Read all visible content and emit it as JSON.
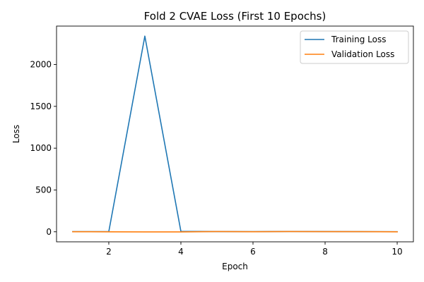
{
  "chart_data": {
    "type": "line",
    "title": "Fold 2 CVAE Loss (First 10 Epochs)",
    "xlabel": "Epoch",
    "ylabel": "Loss",
    "x": [
      1,
      2,
      3,
      4,
      5,
      6,
      7,
      8,
      9,
      10
    ],
    "xlim": [
      0.55,
      10.45
    ],
    "ylim": [
      -120,
      2460
    ],
    "xticks": [
      2,
      4,
      6,
      8,
      10
    ],
    "yticks": [
      0,
      500,
      1000,
      1500,
      2000
    ],
    "grid": false,
    "legend_position": "top-right",
    "series": [
      {
        "name": "Training Loss",
        "color": "#1f77b4",
        "values": [
          2,
          2,
          2340,
          5,
          3,
          2,
          4,
          3,
          2,
          1
        ]
      },
      {
        "name": "Validation Loss",
        "color": "#ff7f0e",
        "values": [
          1,
          0,
          -1,
          -1,
          3,
          1,
          3,
          2,
          2,
          0
        ]
      }
    ]
  }
}
